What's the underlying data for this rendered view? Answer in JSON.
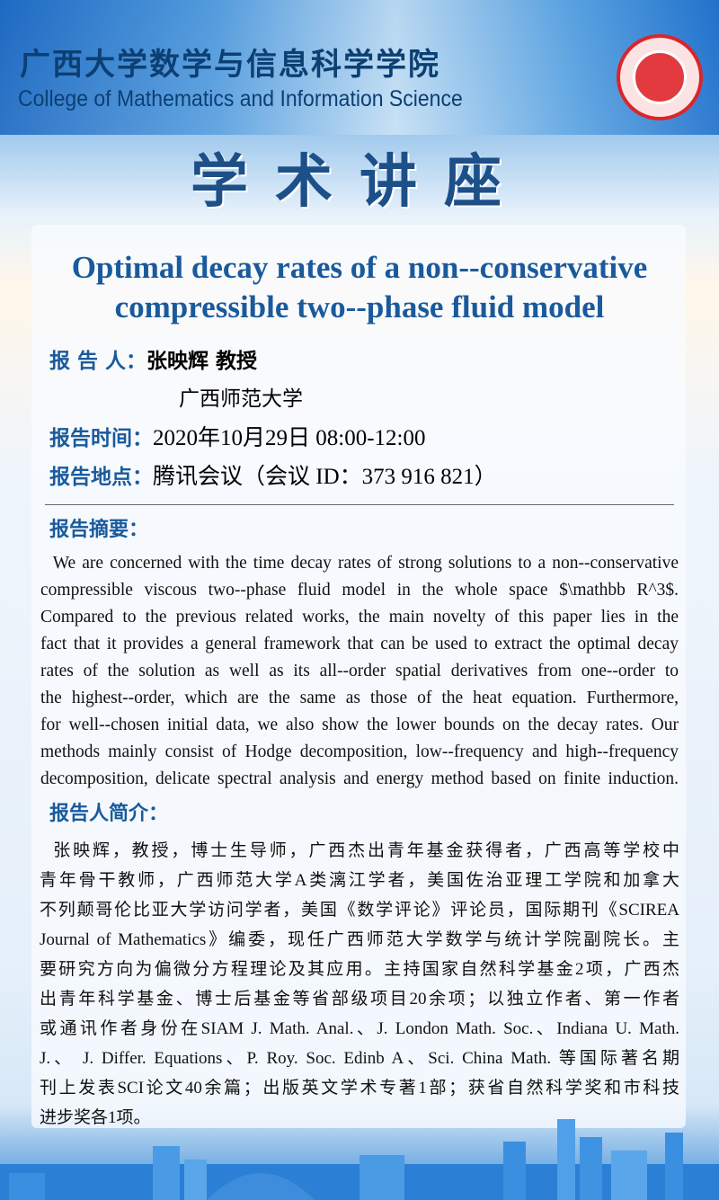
{
  "header": {
    "college_cn": "广西大学数学与信息科学学院",
    "college_en": "College of Mathematics and Information Science",
    "seal_icon": "university-seal"
  },
  "event_type": "学术讲座",
  "talk_title": [
    "Optimal decay rates of a non--conservative",
    "compressible two--phase fluid model"
  ],
  "info": {
    "speaker_label": "报 告 人：",
    "speaker": "张映辉  教授",
    "affiliation": "广西师范大学",
    "time_label": "报告时间：",
    "time": "2020年10月29日  08:00-12:00",
    "place_label": "报告地点：",
    "place": "腾讯会议（会议  ID：373 916 821）"
  },
  "abstract": {
    "heading": "报告摘要：",
    "lines": [
      "  We are concerned with the time decay rates of strong solutions to a non--conservative",
      "compressible viscous two--phase fluid model in the whole space $\\mathbb R^3$.",
      "Compared to the previous related works, the main novelty of this paper lies in the",
      "fact that it provides a general framework that can be used to extract the optimal decay",
      "rates of the solution as well as its all--order spatial derivatives from one--order to",
      "the highest--order, which are the same as those of the heat equation. Furthermore,",
      "for well--chosen initial data, we also show the lower bounds on the decay rates. Our",
      "methods mainly consist of Hodge decomposition, low--frequency and high--frequency",
      "decomposition, delicate spectral analysis and energy method based on finite induction."
    ]
  },
  "bio": {
    "heading": "报告人简介：",
    "lines": [
      "  张映辉，教授，博士生导师，广西杰出青年基金获得者，广西高等学校中",
      "青年骨干教师，广西师范大学A类漓江学者，美国佐治亚理工学院和加拿大",
      "不列颠哥伦比亚大学访问学者，美国《数学评论》评论员，国际期刊《SCIREA",
      "Journal of Mathematics》编委，现任广西师范大学数学与统计学院副院长。主",
      "要研究方向为偏微分方程理论及其应用。主持国家自然科学基金2项，广西杰",
      "出青年科学基金、博士后基金等省部级项目20余项；以独立作者、第一作者",
      "或通讯作者身份在SIAM J. Math. Anal.、J. London Math. Soc.、Indiana U. Math.",
      "J.、 J. Differ. Equations、P. Roy. Soc. Edinb A、Sci. China Math. 等国际著名期",
      "刊上发表SCI论文40余篇；出版英文学术专著1部；获省自然科学奖和市科技",
      "进步奖各1项。"
    ]
  },
  "colors": {
    "accent": "#1a5a9c",
    "title_dark": "#1d4f88",
    "seal_red": "#d9252b"
  }
}
